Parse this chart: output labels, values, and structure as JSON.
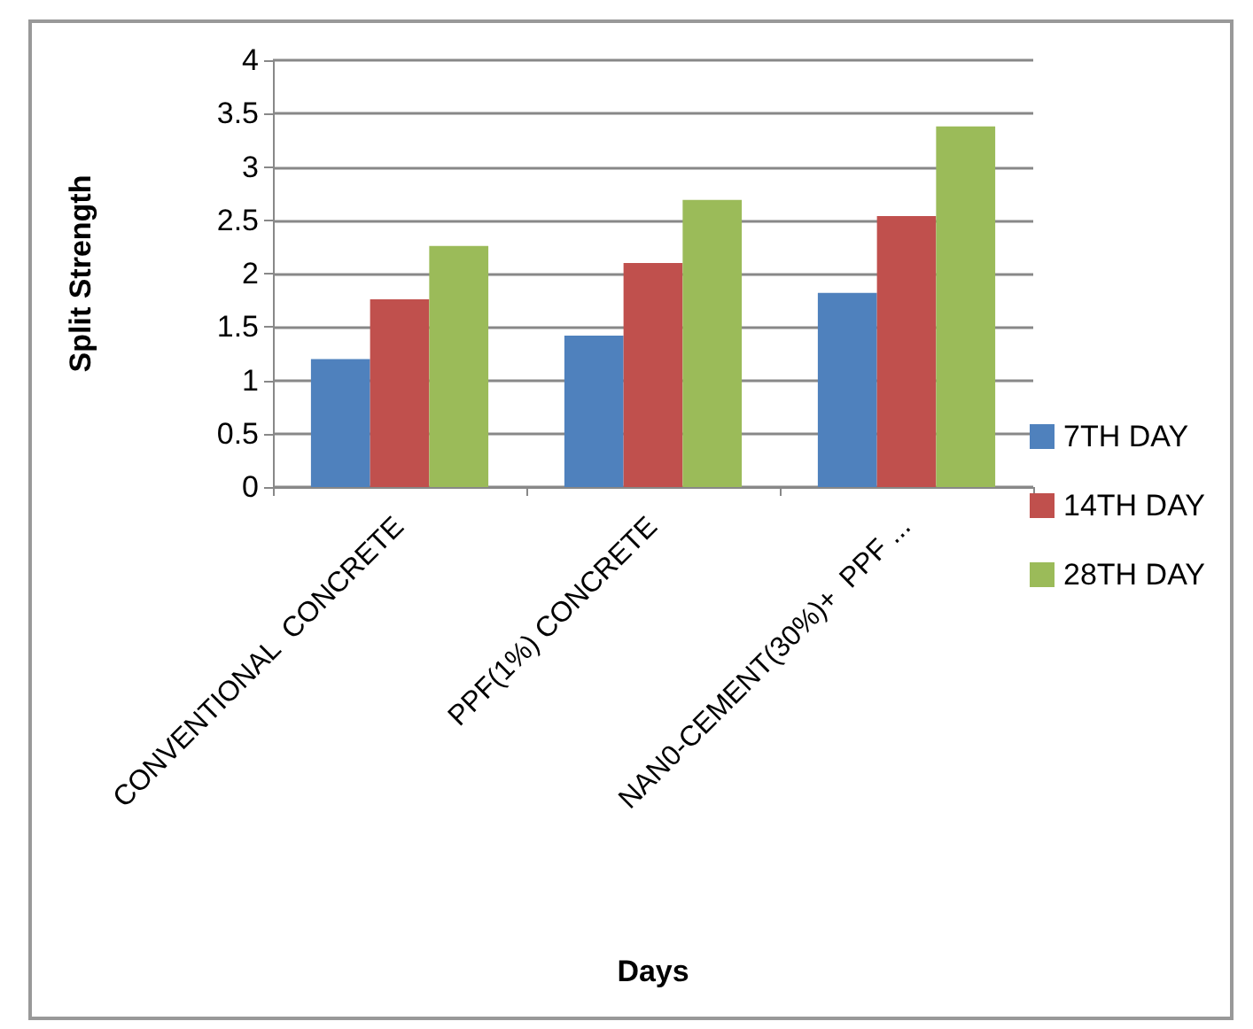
{
  "chart_data": {
    "type": "bar",
    "xlabel": "Days",
    "ylabel": "Split Strength",
    "categories": [
      "CONVENTIONAL  CONCRETE",
      "PPF(1%) CONCRETE",
      "NAN0-CEMENT(30%)+  PPF ..."
    ],
    "series": [
      {
        "name": "7TH DAY",
        "color": "#4f81bd",
        "values": [
          1.2,
          1.42,
          1.82
        ]
      },
      {
        "name": "14TH DAY",
        "color": "#c0504d",
        "values": [
          1.76,
          2.1,
          2.54
        ]
      },
      {
        "name": "28TH DAY",
        "color": "#9bbb59",
        "values": [
          2.26,
          2.69,
          3.38
        ]
      }
    ],
    "ylim": [
      0,
      4
    ],
    "yticks": [
      0,
      0.5,
      1,
      1.5,
      2,
      2.5,
      3,
      3.5,
      4
    ],
    "grid": "y",
    "legend": "right"
  }
}
